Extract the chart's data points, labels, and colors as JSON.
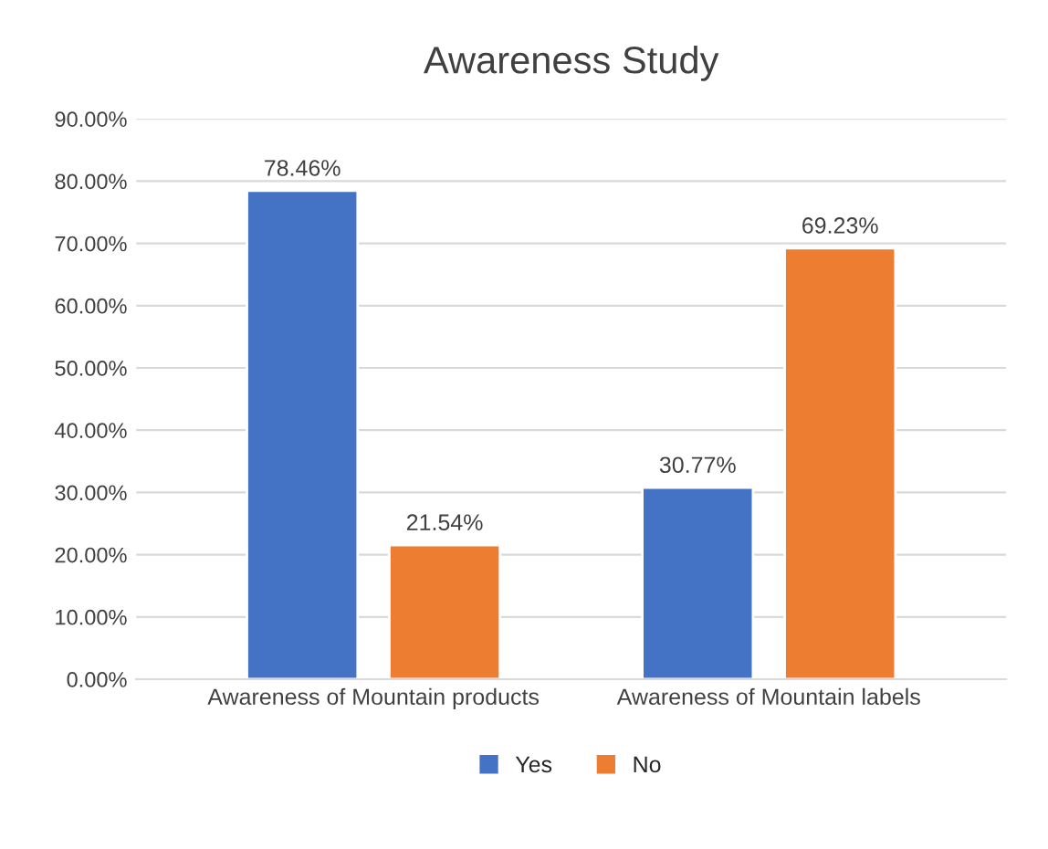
{
  "chart_data": {
    "type": "bar",
    "title": "Awareness Study",
    "categories": [
      "Awareness of Mountain products",
      "Awareness of Mountain labels"
    ],
    "series": [
      {
        "name": "Yes",
        "color": "#4472c4",
        "values": [
          78.46,
          30.77
        ],
        "value_labels": [
          "78.46%",
          "30.77%"
        ]
      },
      {
        "name": "No",
        "color": "#ed7d31",
        "values": [
          21.54,
          69.23
        ],
        "value_labels": [
          "21.54%",
          "69.23%"
        ]
      }
    ],
    "ylim": [
      0,
      90
    ],
    "yticks": [
      {
        "value": 0,
        "label": "0.00%"
      },
      {
        "value": 10,
        "label": "10.00%"
      },
      {
        "value": 20,
        "label": "20.00%"
      },
      {
        "value": 30,
        "label": "30.00%"
      },
      {
        "value": 40,
        "label": "40.00%"
      },
      {
        "value": 50,
        "label": "50.00%"
      },
      {
        "value": 60,
        "label": "60.00%"
      },
      {
        "value": 70,
        "label": "70.00%"
      },
      {
        "value": 80,
        "label": "80.00%"
      },
      {
        "value": 90,
        "label": "90.00%"
      }
    ],
    "grid": "y",
    "legend": "bottom"
  }
}
